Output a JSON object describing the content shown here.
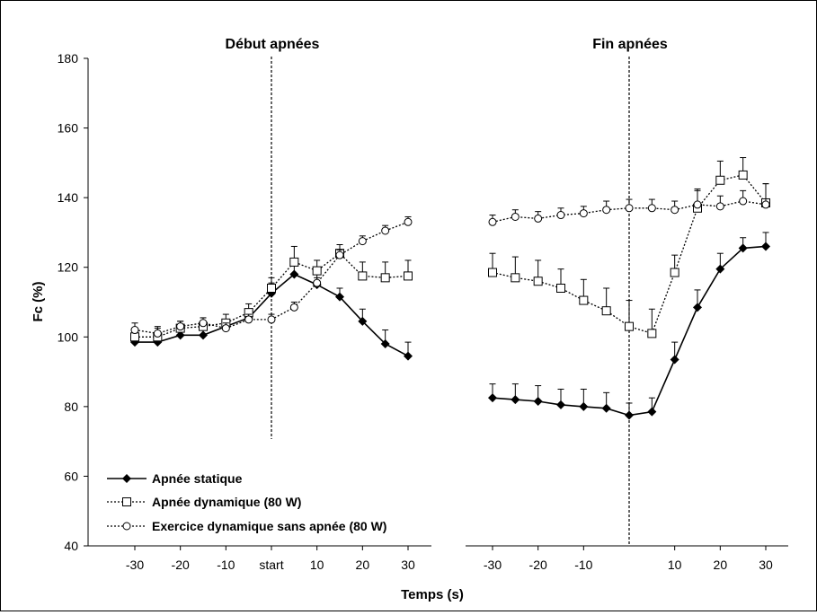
{
  "chart_data": {
    "type": "line",
    "ylabel": "Fc (%)",
    "xlabel": "Temps (s)",
    "ylim": [
      40,
      180
    ],
    "yticks": [
      40,
      60,
      80,
      100,
      120,
      140,
      160,
      180
    ],
    "panels": [
      {
        "title": "Début apnées",
        "x": [
          -30,
          -25,
          -20,
          -15,
          -10,
          -5,
          0,
          5,
          10,
          15,
          20,
          25,
          30
        ],
        "xticks": [
          -30,
          -20,
          -10,
          0,
          10,
          20,
          30
        ],
        "xtick_labels": [
          "-30",
          "-20",
          "-10",
          "start",
          "10",
          "20",
          "30"
        ],
        "marker_line_at": 0,
        "series": [
          {
            "name": "Apnée statique",
            "values": [
              98.5,
              98.5,
              100.5,
              100.5,
              103,
              105.5,
              112.5,
              118,
              115,
              111.5,
              104.5,
              98,
              94.5
            ],
            "err": [
              2,
              1.5,
              2,
              2,
              2,
              2,
              3,
              3.5,
              3.5,
              2.5,
              3.5,
              4,
              4
            ]
          },
          {
            "name": "Apnée dynamique (80 W)",
            "values": [
              100,
              100,
              102.5,
              103,
              104,
              107,
              114,
              121.5,
              119,
              124,
              117.5,
              117,
              117.5
            ],
            "err": [
              2,
              2.5,
              2,
              2.5,
              2.5,
              2.5,
              3,
              4.5,
              3,
              2.5,
              4,
              4.5,
              4.5
            ]
          },
          {
            "name": "Exercice dynamique sans apnée (80 W)",
            "values": [
              102,
              101,
              103,
              104,
              102.5,
              105,
              105,
              108.5,
              115.5,
              123.5,
              127.5,
              130.5,
              133
            ],
            "err": [
              2,
              2,
              1.5,
              1.5,
              1.5,
              1.5,
              1.5,
              1.5,
              1.5,
              1.5,
              1.5,
              1.5,
              1.5
            ]
          }
        ]
      },
      {
        "title": "Fin apnées",
        "x": [
          -30,
          -25,
          -20,
          -15,
          -10,
          -5,
          0,
          5,
          10,
          15,
          20,
          25,
          30
        ],
        "xticks": [
          -30,
          -20,
          -10,
          10,
          20,
          30
        ],
        "xtick_labels": [
          "-30",
          "-20",
          "-10",
          "10",
          "20",
          "30"
        ],
        "marker_line_at": 0,
        "series": [
          {
            "name": "Apnée statique",
            "values": [
              82.5,
              82,
              81.5,
              80.5,
              80,
              79.5,
              77.5,
              78.5,
              93.5,
              108.5,
              119.5,
              125.5,
              126
            ],
            "err": [
              4,
              4.5,
              4.5,
              4.5,
              5,
              4.5,
              3.5,
              4,
              5,
              5,
              4.5,
              3,
              4
            ]
          },
          {
            "name": "Apnée dynamique (80 W)",
            "values": [
              118.5,
              117,
              116,
              114,
              110.5,
              107.5,
              103,
              101,
              118.5,
              137,
              145,
              146.5,
              138.5
            ],
            "err": [
              5.5,
              6,
              6,
              5.5,
              6,
              6.5,
              7.5,
              7,
              5,
              5,
              5.5,
              5,
              5.5
            ]
          },
          {
            "name": "Exercice dynamique sans apnée (80 W)",
            "values": [
              133,
              134.5,
              134,
              135,
              135.5,
              136.5,
              137,
              137,
              136.5,
              138,
              137.5,
              139,
              138
            ],
            "err": [
              2,
              2,
              2,
              2,
              2,
              2.5,
              2.5,
              2.5,
              2.5,
              4.5,
              3,
              3,
              6
            ]
          }
        ]
      }
    ],
    "legend": {
      "placement": "bottom-left",
      "items": [
        {
          "label": "Apnée statique",
          "marker": "diamond-filled",
          "line": "solid"
        },
        {
          "label": "Apnée dynamique (80 W)",
          "marker": "square-open",
          "line": "dotted"
        },
        {
          "label": "Exercice dynamique sans apnée (80 W)",
          "marker": "circle-open",
          "line": "dotted"
        }
      ]
    },
    "grid": false,
    "colors": {
      "line": "#000000",
      "marker_open_fill": "#ffffff"
    }
  }
}
